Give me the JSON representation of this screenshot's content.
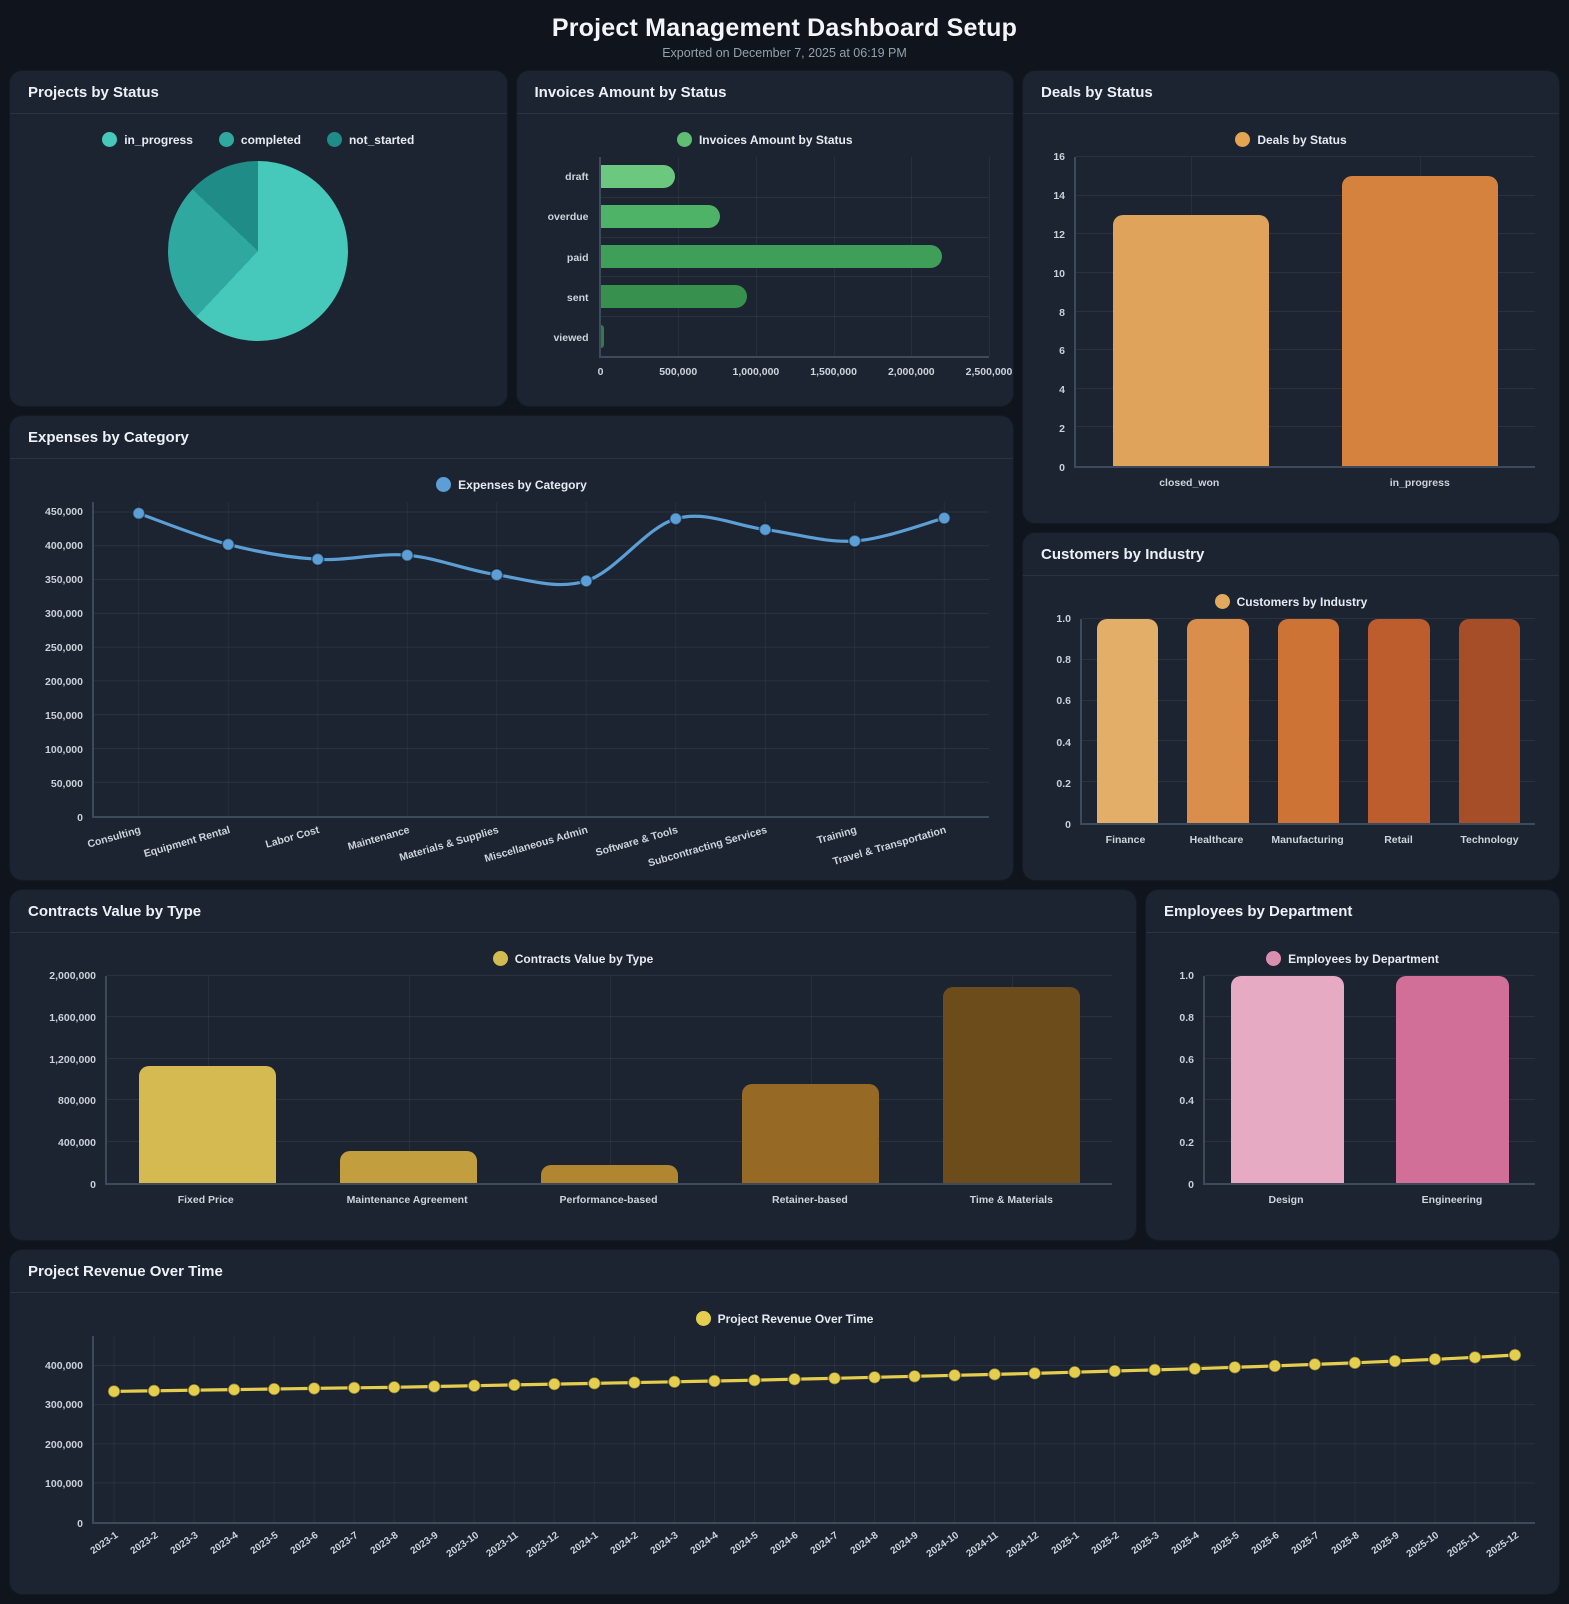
{
  "page": {
    "title": "Project Management Dashboard Setup",
    "subtitle": "Exported on December 7, 2025 at 06:19 PM",
    "background": "#0f141d",
    "card_background": "#1c2431"
  },
  "chart_data": [
    {
      "id": "projects_by_status",
      "type": "pie",
      "title": "Projects by Status",
      "labels": [
        "in_progress",
        "completed",
        "not_started"
      ],
      "values": [
        62,
        25,
        13
      ],
      "colors": [
        "#46c8bb",
        "#2fa9a0",
        "#1f8c87"
      ],
      "legend_position": "top"
    },
    {
      "id": "invoices_amount_by_status",
      "type": "hbar",
      "title": "Invoices Amount by Status",
      "legend_label": "Invoices Amount by Status",
      "legend_color": "#5fbe72",
      "categories": [
        "draft",
        "overdue",
        "paid",
        "sent",
        "viewed"
      ],
      "values": [
        480000,
        770000,
        2200000,
        940000,
        25000
      ],
      "colors": [
        "#6cc87e",
        "#4eb366",
        "#3f9f58",
        "#37904e",
        "#2d7d44"
      ],
      "xlim": [
        0,
        2500000
      ],
      "xticks": [
        0,
        500000,
        1000000,
        1500000,
        2000000,
        2500000
      ],
      "xtick_labels": [
        "0",
        "500,000",
        "1,000,000",
        "1,500,000",
        "2,000,000",
        "2,500,000"
      ]
    },
    {
      "id": "deals_by_status",
      "type": "bar",
      "title": "Deals by Status",
      "legend_label": "Deals by Status",
      "legend_color": "#e4a451",
      "categories": [
        "closed_won",
        "in_progress"
      ],
      "values": [
        13,
        15
      ],
      "colors": [
        "#dfa35c",
        "#d4823d"
      ],
      "ylim": [
        0,
        16
      ],
      "yticks": [
        0,
        2,
        4,
        6,
        8,
        10,
        12,
        14,
        16
      ],
      "ytick_labels": [
        "0",
        "2",
        "4",
        "6",
        "8",
        "10",
        "12",
        "14",
        "16"
      ]
    },
    {
      "id": "expenses_by_category",
      "type": "line",
      "title": "Expenses by Category",
      "legend_label": "Expenses by Category",
      "legend_color": "#5c9fd6",
      "color": "#5c9fd6",
      "categories": [
        "Consulting",
        "Equipment Rental",
        "Labor Cost",
        "Maintenance",
        "Materials & Supplies",
        "Miscellaneous Admin",
        "Software & Tools",
        "Subcontracting Services",
        "Training",
        "Travel & Transportation"
      ],
      "values": [
        448000,
        402000,
        380000,
        386000,
        357000,
        348000,
        440000,
        424000,
        407000,
        441000
      ],
      "ylim": [
        0,
        450000
      ],
      "yticks": [
        0,
        50000,
        100000,
        150000,
        200000,
        250000,
        300000,
        350000,
        400000,
        450000
      ],
      "ytick_labels": [
        "0",
        "50,000",
        "100,000",
        "150,000",
        "200,000",
        "250,000",
        "300,000",
        "350,000",
        "400,000",
        "450,000"
      ],
      "label_rotation": -16
    },
    {
      "id": "customers_by_industry",
      "type": "bar",
      "title": "Customers by Industry",
      "legend_label": "Customers by Industry",
      "legend_color": "#e0a95f",
      "categories": [
        "Finance",
        "Healthcare",
        "Manufacturing",
        "Retail",
        "Technology"
      ],
      "values": [
        1.0,
        1.0,
        1.0,
        1.0,
        1.0
      ],
      "colors": [
        "#e3ae68",
        "#d98f4b",
        "#cc7335",
        "#bd5c2c",
        "#a54e28"
      ],
      "ylim": [
        0,
        1.0
      ],
      "yticks": [
        0,
        0.2,
        0.4,
        0.6,
        0.8,
        1.0
      ],
      "ytick_labels": [
        "0",
        "0.2",
        "0.4",
        "0.6",
        "0.8",
        "1.0"
      ]
    },
    {
      "id": "contracts_value_by_type",
      "type": "bar",
      "title": "Contracts Value by Type",
      "legend_label": "Contracts Value by Type",
      "legend_color": "#d3bc4f",
      "categories": [
        "Fixed Price",
        "Maintenance Agreement",
        "Performance-based",
        "Retainer-based",
        "Time & Materials"
      ],
      "values": [
        1130000,
        310000,
        170000,
        960000,
        1890000
      ],
      "colors": [
        "#d5ba52",
        "#c29e3e",
        "#b08631",
        "#966a24",
        "#6d4c1c"
      ],
      "ylim": [
        0,
        2000000
      ],
      "yticks": [
        0,
        400000,
        800000,
        1200000,
        1600000,
        2000000
      ],
      "ytick_labels": [
        "0",
        "400,000",
        "800,000",
        "1,200,000",
        "1,600,000",
        "2,000,000"
      ]
    },
    {
      "id": "employees_by_department",
      "type": "bar",
      "title": "Employees by Department",
      "legend_label": "Employees by Department",
      "legend_color": "#db8fae",
      "categories": [
        "Design",
        "Engineering"
      ],
      "values": [
        1.0,
        1.0
      ],
      "colors": [
        "#e6abc3",
        "#d26f98"
      ],
      "ylim": [
        0,
        1.0
      ],
      "yticks": [
        0,
        0.2,
        0.4,
        0.6,
        0.8,
        1.0
      ],
      "ytick_labels": [
        "0",
        "0.2",
        "0.4",
        "0.6",
        "0.8",
        "1.0"
      ]
    },
    {
      "id": "project_revenue_over_time",
      "type": "line",
      "title": "Project Revenue Over Time",
      "legend_label": "Project Revenue Over Time",
      "legend_color": "#e5ce4d",
      "color": "#e5ce4d",
      "categories": [
        "2023-1",
        "2023-2",
        "2023-3",
        "2023-4",
        "2023-5",
        "2023-6",
        "2023-7",
        "2023-8",
        "2023-9",
        "2023-10",
        "2023-11",
        "2023-12",
        "2024-1",
        "2024-2",
        "2024-3",
        "2024-4",
        "2024-5",
        "2024-6",
        "2024-7",
        "2024-8",
        "2024-9",
        "2024-10",
        "2024-11",
        "2024-12",
        "2025-1",
        "2025-2",
        "2025-3",
        "2025-4",
        "2025-5",
        "2025-6",
        "2025-7",
        "2025-8",
        "2025-9",
        "2025-10",
        "2025-11",
        "2025-12"
      ],
      "values": [
        334000,
        335500,
        337000,
        338500,
        340000,
        341500,
        343000,
        344500,
        346500,
        348500,
        350500,
        352500,
        354500,
        356500,
        358500,
        360500,
        362500,
        365000,
        367500,
        370000,
        372500,
        375000,
        377500,
        380000,
        383000,
        386000,
        389000,
        392000,
        395500,
        399000,
        403000,
        407000,
        411500,
        416000,
        421000,
        427000
      ],
      "ylim": [
        0,
        450000
      ],
      "yticks": [
        0,
        100000,
        200000,
        300000,
        400000
      ],
      "ytick_labels": [
        "0",
        "100,000",
        "200,000",
        "300,000",
        "400,000"
      ],
      "label_rotation": -35
    }
  ]
}
